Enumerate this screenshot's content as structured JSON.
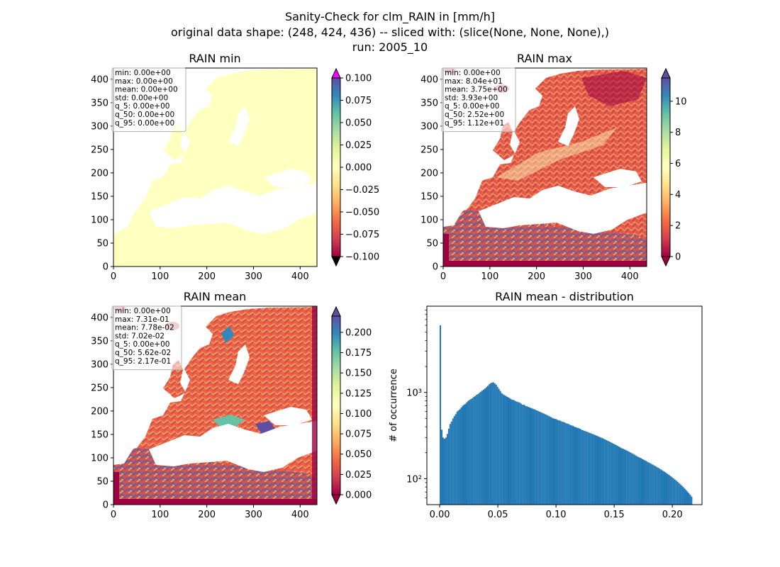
{
  "figure": {
    "suptitle_lines": [
      "Sanity-Check for clm_RAIN in [mm/h]",
      "original data shape: (248, 424, 436) -- sliced with: (slice(None, None, None),)",
      "run: 2005_10"
    ]
  },
  "colors": {
    "cmap": "Spectral",
    "cmap_stops": [
      "#9e0142",
      "#d53e4f",
      "#f46d43",
      "#fdae61",
      "#fee08b",
      "#ffffbf",
      "#e6f598",
      "#abdda4",
      "#66c2a5",
      "#3288bd",
      "#5e4fa2"
    ],
    "min_over_color": "#ff00ff",
    "min_under_color": "#000000",
    "hist_bar": "#1f77b4",
    "land_nodata": "#ffffff"
  },
  "chart_data": [
    {
      "type": "heatmap",
      "title": "RAIN min",
      "xlim": [
        0,
        436
      ],
      "ylim": [
        0,
        424
      ],
      "xticks": [
        0,
        100,
        200,
        300,
        400
      ],
      "yticks": [
        0,
        50,
        100,
        150,
        200,
        250,
        300,
        350,
        400
      ],
      "colorbar": {
        "vmin": -0.1,
        "vmax": 0.1,
        "ticks": [
          "0.100",
          "0.075",
          "0.050",
          "0.025",
          "0.000",
          "−0.025",
          "−0.050",
          "−0.075",
          "−0.100"
        ],
        "extend": "both"
      },
      "stats": [
        "min: 0.00e+00",
        "max: 0.00e+00",
        "mean: 0.00e+00",
        "std: 0.00e+00",
        "q_5: 0.00e+00",
        "q_50: 0.00e+00",
        "q_95: 0.00e+00"
      ]
    },
    {
      "type": "heatmap",
      "title": "RAIN max",
      "xlim": [
        0,
        436
      ],
      "ylim": [
        0,
        424
      ],
      "xticks": [
        0,
        100,
        200,
        300,
        400
      ],
      "yticks": [
        0,
        50,
        100,
        150,
        200,
        250,
        300,
        350,
        400
      ],
      "colorbar": {
        "vmin": 0,
        "vmax": 11.5,
        "ticks": [
          "10",
          "8",
          "6",
          "4",
          "2",
          "0"
        ],
        "extend": "both"
      },
      "stats": [
        "min: 0.00e+00",
        "max: 8.04e+01",
        "mean: 3.75e+00",
        "std: 3.93e+00",
        "q_5: 0.00e+00",
        "q_50: 2.52e+00",
        "q_95: 1.12e+01"
      ]
    },
    {
      "type": "heatmap",
      "title": "RAIN mean",
      "xlim": [
        0,
        436
      ],
      "ylim": [
        0,
        424
      ],
      "xticks": [
        0,
        100,
        200,
        300,
        400
      ],
      "yticks": [
        0,
        50,
        100,
        150,
        200,
        250,
        300,
        350,
        400
      ],
      "colorbar": {
        "vmin": 0,
        "vmax": 0.22,
        "ticks": [
          "0.200",
          "0.175",
          "0.150",
          "0.125",
          "0.100",
          "0.075",
          "0.050",
          "0.025",
          "0.000"
        ],
        "extend": "both"
      },
      "stats": [
        "min: 0.00e+00",
        "max: 7.31e-01",
        "mean: 7.78e-02",
        "std: 7.02e-02",
        "q_5: 0.00e+00",
        "q_50: 5.62e-02",
        "q_95: 2.17e-01"
      ]
    },
    {
      "type": "bar",
      "title": "RAIN mean - distribution",
      "xlabel": "",
      "ylabel": "# of occurrence",
      "yscale": "log",
      "xlim": [
        -0.011,
        0.2255
      ],
      "ylim": [
        50,
        10000
      ],
      "xticks": [
        0.0,
        0.05,
        0.1,
        0.15,
        0.2
      ],
      "xtick_labels": [
        "0.00",
        "0.05",
        "0.10",
        "0.15",
        "0.20"
      ],
      "ytick_labels": [
        "10²",
        "10³"
      ],
      "bin_start": 0.0,
      "bin_width": 0.0012,
      "values": [
        6000,
        370,
        300,
        290,
        300,
        330,
        380,
        430,
        460,
        500,
        530,
        560,
        600,
        620,
        640,
        670,
        700,
        720,
        740,
        770,
        800,
        820,
        840,
        860,
        890,
        910,
        940,
        960,
        990,
        1020,
        1050,
        1080,
        1110,
        1150,
        1190,
        1240,
        1280,
        1300,
        1310,
        1270,
        1230,
        1160,
        1100,
        1040,
        980,
        950,
        930,
        910,
        890,
        870,
        850,
        830,
        820,
        810,
        790,
        780,
        770,
        760,
        740,
        720,
        720,
        700,
        690,
        680,
        670,
        660,
        650,
        640,
        630,
        620,
        610,
        600,
        590,
        580,
        570,
        560,
        550,
        540,
        530,
        520,
        510,
        500,
        495,
        490,
        480,
        475,
        470,
        460,
        455,
        450,
        440,
        435,
        430,
        420,
        415,
        410,
        400,
        395,
        390,
        385,
        380,
        370,
        365,
        360,
        355,
        350,
        345,
        340,
        335,
        330,
        325,
        320,
        315,
        310,
        305,
        300,
        295,
        290,
        285,
        280,
        275,
        270,
        265,
        260,
        255,
        250,
        245,
        240,
        235,
        230,
        225,
        222,
        218,
        214,
        210,
        206,
        202,
        198,
        194,
        190,
        186,
        182,
        178,
        175,
        172,
        168,
        165,
        162,
        158,
        155,
        152,
        149,
        146,
        143,
        140,
        137,
        134,
        131,
        128,
        125,
        122,
        119,
        116,
        113,
        110,
        107,
        104,
        101,
        98,
        95,
        92,
        89,
        86,
        83,
        80,
        77,
        74,
        71,
        68,
        65,
        62
      ]
    }
  ]
}
